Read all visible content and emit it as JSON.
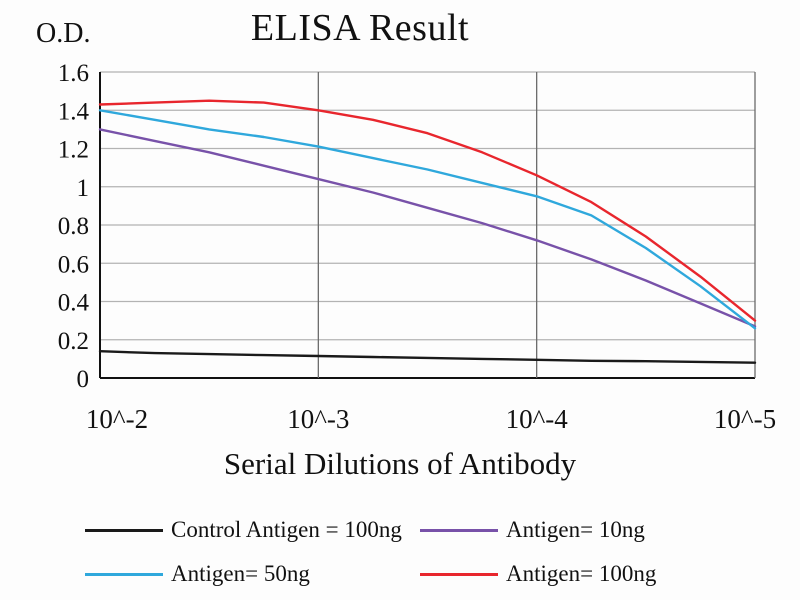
{
  "chart_data": {
    "type": "line",
    "title": "ELISA Result",
    "ylabel": "O.D.",
    "xlabel": "Serial Dilutions of Antibody",
    "x_tick_labels": [
      "10^-2",
      "10^-3",
      "10^-4",
      "10^-5"
    ],
    "y_ticks": [
      0,
      0.2,
      0.4,
      0.6,
      0.8,
      1,
      1.2,
      1.4,
      1.6
    ],
    "ylim": [
      0,
      1.6
    ],
    "grid": true,
    "legend_position": "bottom",
    "x_sample": [
      0,
      0.25,
      0.5,
      0.75,
      1,
      1.25,
      1.5,
      1.75,
      2,
      2.25,
      2.5,
      2.75,
      3
    ],
    "series": [
      {
        "name": "Control Antigen = 100ng",
        "color": "#1a1a1a",
        "values": [
          0.14,
          0.13,
          0.125,
          0.12,
          0.115,
          0.11,
          0.105,
          0.1,
          0.095,
          0.09,
          0.088,
          0.084,
          0.08
        ]
      },
      {
        "name": "Antigen= 10ng",
        "color": "#7852a9",
        "values": [
          1.3,
          1.24,
          1.18,
          1.11,
          1.04,
          0.97,
          0.89,
          0.81,
          0.72,
          0.62,
          0.51,
          0.39,
          0.27
        ]
      },
      {
        "name": "Antigen= 50ng",
        "color": "#2fa8dc",
        "values": [
          1.4,
          1.35,
          1.3,
          1.26,
          1.21,
          1.15,
          1.09,
          1.02,
          0.95,
          0.85,
          0.68,
          0.48,
          0.26
        ]
      },
      {
        "name": "Antigen= 100ng",
        "color": "#e8262d",
        "values": [
          1.43,
          1.44,
          1.45,
          1.44,
          1.4,
          1.35,
          1.28,
          1.18,
          1.06,
          0.92,
          0.74,
          0.53,
          0.3
        ]
      }
    ],
    "colors": {
      "axis": "#111111",
      "h_grid": "#b3b3b3",
      "v_grid": "#6b6b6b",
      "background": "#fdfdfd"
    }
  }
}
